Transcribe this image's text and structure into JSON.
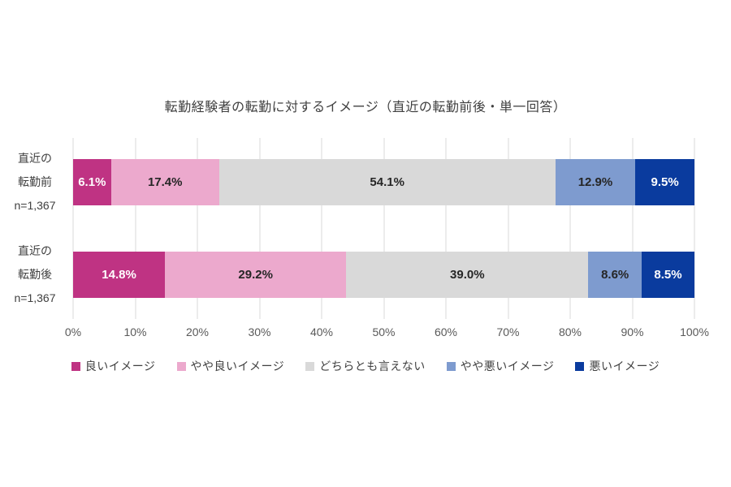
{
  "page": {
    "background": "#ffffff"
  },
  "chart_data": {
    "type": "bar",
    "orientation": "horizontal-stacked",
    "title": "転勤経験者の転勤に対するイメージ（直近の転勤前後・単一回答）",
    "categories": [
      {
        "lines": [
          "直近の",
          "転勤前",
          "n=1,367"
        ]
      },
      {
        "lines": [
          "直近の",
          "転勤後",
          "n=1,367"
        ]
      }
    ],
    "series": [
      {
        "name": "良いイメージ",
        "color": "#bf3383",
        "label_color": "#ffffff",
        "values": [
          6.1,
          14.8
        ],
        "labels": [
          "6.1%",
          "14.8%"
        ]
      },
      {
        "name": "やや良いイメージ",
        "color": "#eca9cd",
        "label_color": "#262626",
        "values": [
          17.4,
          29.2
        ],
        "labels": [
          "17.4%",
          "29.2%"
        ]
      },
      {
        "name": "どちらとも言えない",
        "color": "#d9d9d9",
        "label_color": "#262626",
        "values": [
          54.1,
          39.0
        ],
        "labels": [
          "54.1%",
          "39.0%"
        ]
      },
      {
        "name": "やや悪いイメージ",
        "color": "#7e9bcf",
        "label_color": "#262626",
        "values": [
          12.9,
          8.6
        ],
        "labels": [
          "12.9%",
          "8.6%"
        ]
      },
      {
        "name": "悪いイメージ",
        "color": "#0a3b9e",
        "label_color": "#ffffff",
        "values": [
          9.5,
          8.5
        ],
        "labels": [
          "9.5%",
          "8.5%"
        ]
      }
    ],
    "xlim": [
      0,
      100
    ],
    "x_ticks": [
      "0%",
      "10%",
      "20%",
      "30%",
      "40%",
      "50%",
      "60%",
      "70%",
      "80%",
      "90%",
      "100%"
    ],
    "grid": true,
    "gridline_color": "#d9d9d9",
    "legend_position": "bottom"
  }
}
